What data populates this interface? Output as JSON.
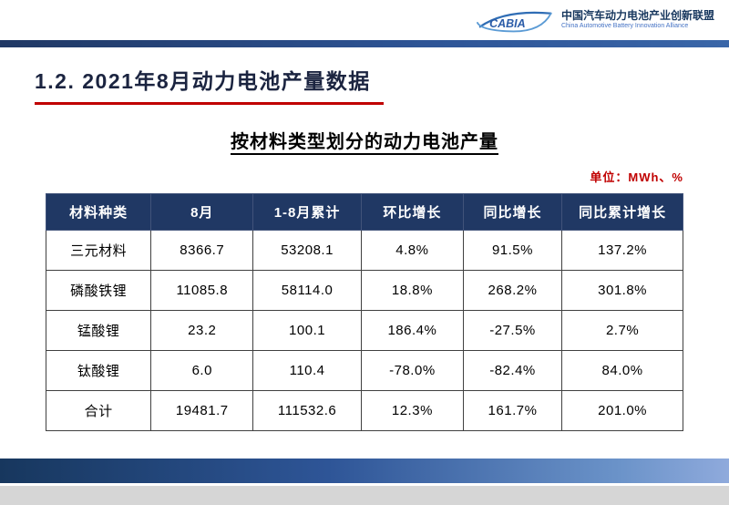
{
  "header": {
    "logo_text": "CABIA",
    "org_name_cn": "中国汽车动力电池产业创新联盟",
    "org_name_en": "China Automotive Battery Innovation Alliance"
  },
  "page": {
    "title": "1.2. 2021年8月动力电池产量数据",
    "subtitle": "按材料类型划分的动力电池产量",
    "unit_label": "单位：MWh、%"
  },
  "chart_data": {
    "type": "table",
    "title": "按材料类型划分的动力电池产量",
    "unit": "MWh、%",
    "columns": [
      "材料种类",
      "8月",
      "1-8月累计",
      "环比增长",
      "同比增长",
      "同比累计增长"
    ],
    "rows": [
      [
        "三元材料",
        "8366.7",
        "53208.1",
        "4.8%",
        "91.5%",
        "137.2%"
      ],
      [
        "磷酸铁锂",
        "11085.8",
        "58114.0",
        "18.8%",
        "268.2%",
        "301.8%"
      ],
      [
        "锰酸锂",
        "23.2",
        "100.1",
        "186.4%",
        "-27.5%",
        "2.7%"
      ],
      [
        "钛酸锂",
        "6.0",
        "110.4",
        "-78.0%",
        "-82.4%",
        "84.0%"
      ],
      [
        "合计",
        "19481.7",
        "111532.6",
        "12.3%",
        "161.7%",
        "201.0%"
      ]
    ]
  },
  "colors": {
    "table_header_bg": "#203864",
    "accent_red": "#c00000",
    "top_bar_blue": "#2e5597",
    "footer_gradient_start": "#17375e",
    "footer_gradient_end": "#8faadc",
    "logo_blue": "#2f6db5"
  }
}
